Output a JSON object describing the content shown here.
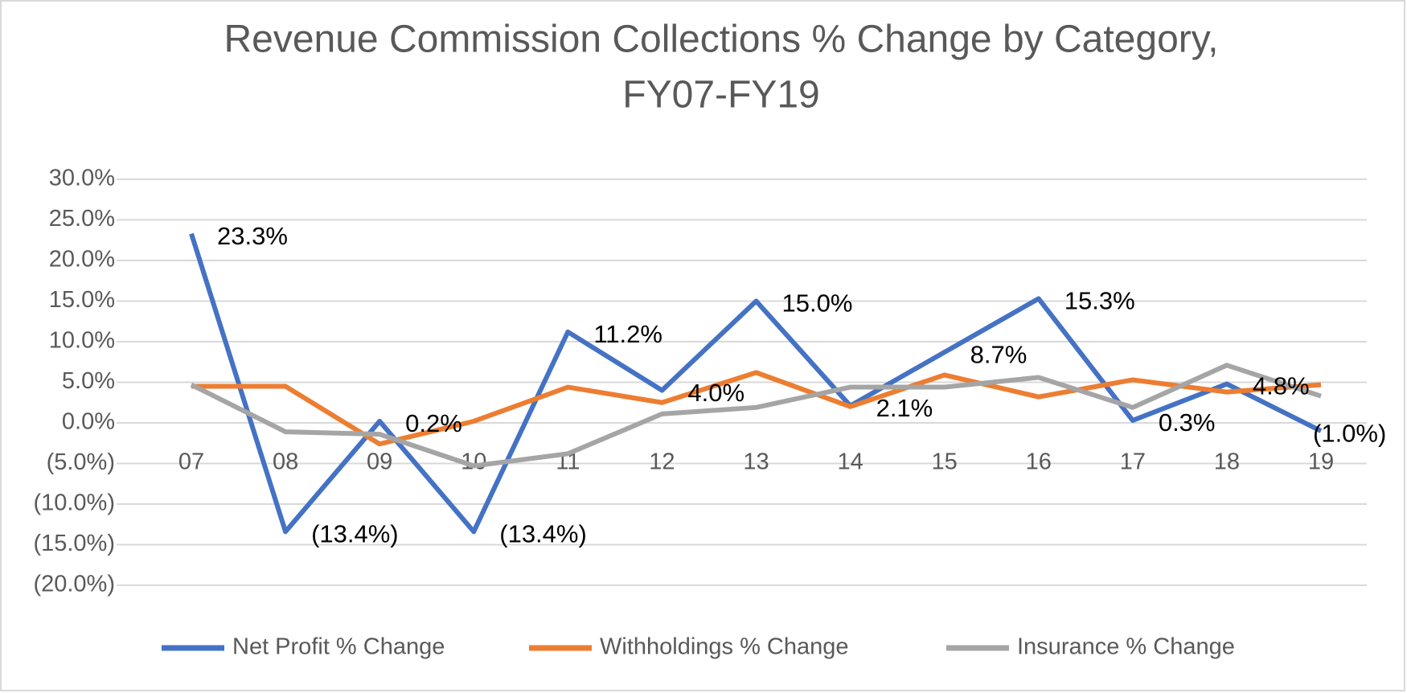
{
  "chart_data": {
    "type": "line",
    "title": [
      "Revenue Commission Collections % Change by Category,",
      "FY07-FY19"
    ],
    "categories": [
      "07",
      "08",
      "09",
      "10",
      "11",
      "12",
      "13",
      "14",
      "15",
      "16",
      "17",
      "18",
      "19"
    ],
    "series": [
      {
        "name": "Net Profit % Change",
        "color": "#4472c4",
        "values": [
          23.3,
          -13.4,
          0.2,
          -13.4,
          11.2,
          4.0,
          15.0,
          2.1,
          8.7,
          15.3,
          0.3,
          4.8,
          -1.0
        ],
        "value_labels": [
          "23.3%",
          "(13.4%)",
          "0.2%",
          "(13.4%)",
          "11.2%",
          "4.0%",
          "15.0%",
          "2.1%",
          "8.7%",
          "15.3%",
          "0.3%",
          "4.8%",
          "(1.0%)"
        ]
      },
      {
        "name": "Withholdings % Change",
        "color": "#ed7d31",
        "values": [
          4.5,
          4.5,
          -2.6,
          0.2,
          4.4,
          2.5,
          6.2,
          2.0,
          5.9,
          3.2,
          5.3,
          3.8,
          4.7
        ]
      },
      {
        "name": "Insurance % Change",
        "color": "#a5a5a5",
        "values": [
          4.7,
          -1.1,
          -1.4,
          -5.3,
          -3.8,
          1.1,
          1.9,
          4.4,
          4.4,
          5.6,
          1.9,
          7.1,
          3.3
        ]
      }
    ],
    "ylim": [
      -20,
      30
    ],
    "yticks": [
      {
        "value": -20,
        "label": "(20.0%)"
      },
      {
        "value": -15,
        "label": "(15.0%)"
      },
      {
        "value": -10,
        "label": "(10.0%)"
      },
      {
        "value": -5,
        "label": "(5.0%)"
      },
      {
        "value": 0,
        "label": "0.0%"
      },
      {
        "value": 5,
        "label": "5.0%"
      },
      {
        "value": 10,
        "label": "10.0%"
      },
      {
        "value": 15,
        "label": "15.0%"
      },
      {
        "value": 20,
        "label": "20.0%"
      },
      {
        "value": 25,
        "label": "25.0%"
      },
      {
        "value": 30,
        "label": "30.0%"
      }
    ],
    "grid": true,
    "legend": "bottom"
  }
}
